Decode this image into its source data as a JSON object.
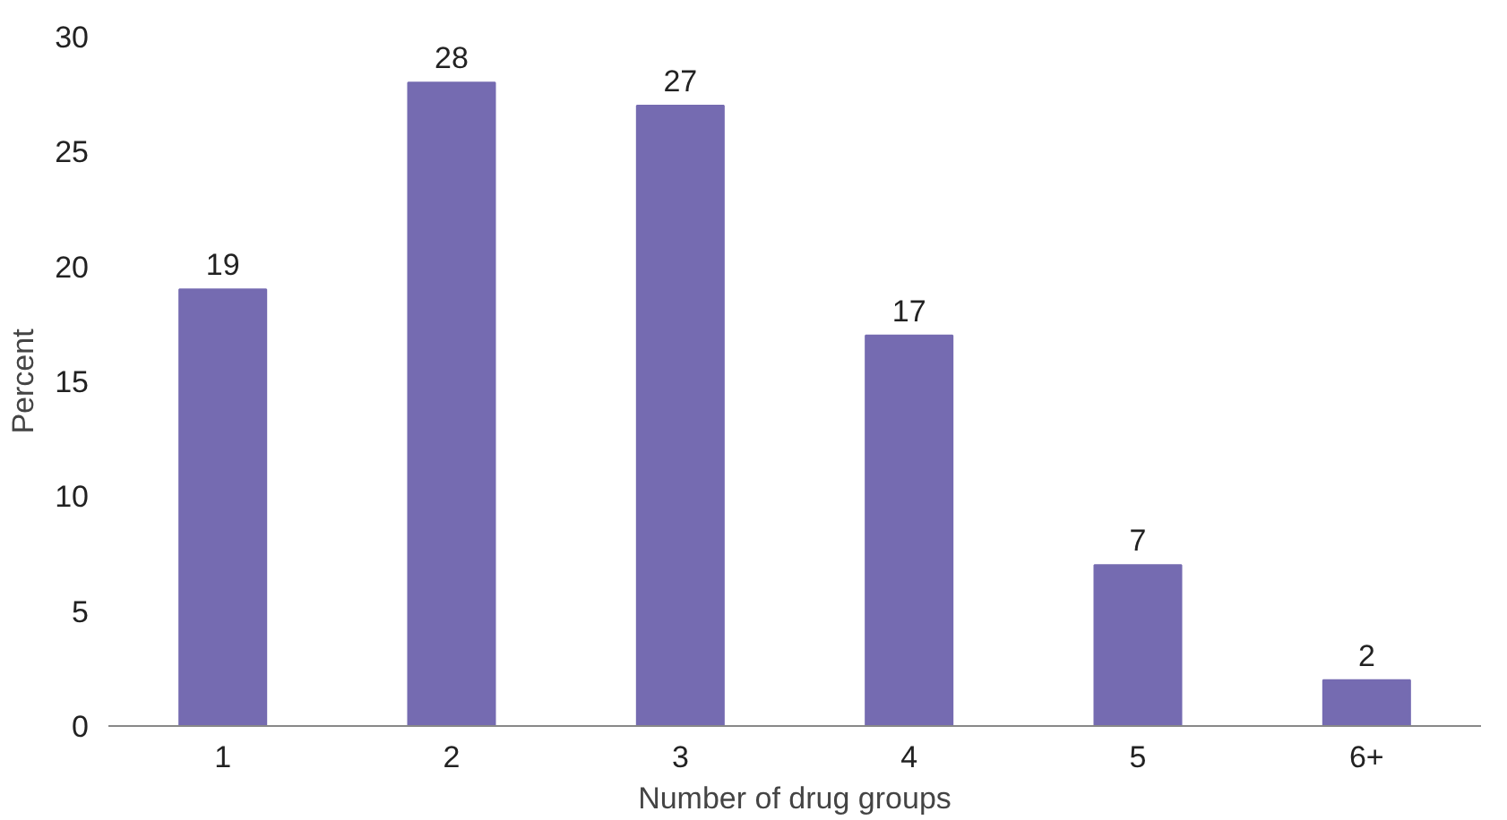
{
  "chart_data": {
    "type": "bar",
    "xlabel": "Number of drug groups",
    "ylabel": "Percent",
    "categories": [
      "1",
      "2",
      "3",
      "4",
      "5",
      "6+"
    ],
    "values": [
      19,
      28,
      27,
      17,
      7,
      2
    ],
    "color": "#756bb1",
    "data_labels": true,
    "ylim": [
      0,
      30
    ],
    "yticks": [
      0,
      5,
      10,
      15,
      20,
      25,
      30
    ],
    "grid": false
  }
}
